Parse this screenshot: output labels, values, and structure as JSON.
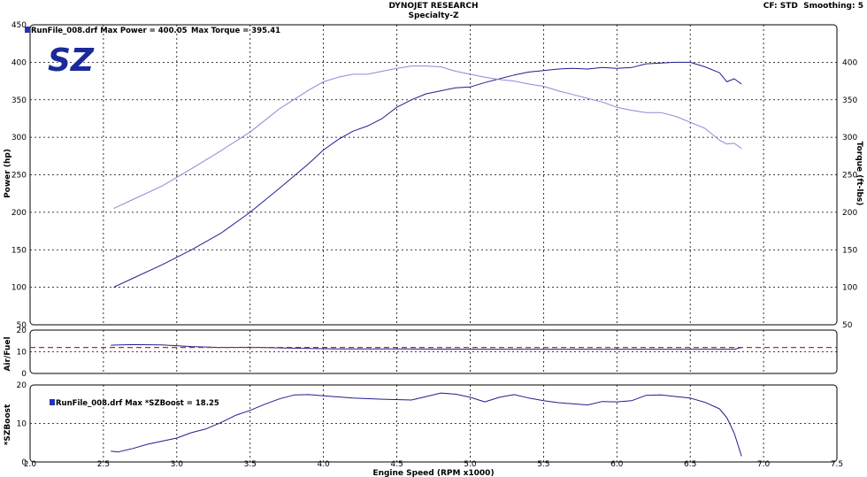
{
  "header": {
    "title": "DYNOJET RESEARCH",
    "subtitle": "Specialty-Z",
    "cf": "CF: STD",
    "smoothing": "Smoothing: 5"
  },
  "logo_text": "SZ",
  "colors": {
    "power": "#1f1f8f",
    "torque": "#8a8ad8",
    "afr": "#1f1f8f",
    "afr_target": "#cc2222",
    "boost": "#1f1f8f",
    "grid": "#000000",
    "frame": "#000000",
    "legend_swatch": "#2233bb"
  },
  "chart_data": [
    {
      "type": "line",
      "panel": "power-torque",
      "legend": [
        "RunFile_008.drf Max Power = 400.05",
        "Max Torque = 395.41"
      ],
      "xlabel": "",
      "ylabel": "Power (hp)",
      "y2label": "Torque (ft-lbs)",
      "xlim": [
        2.0,
        7.5
      ],
      "ylim": [
        50,
        450
      ],
      "y2lim": [
        50,
        450
      ],
      "yticks": [
        50,
        100,
        150,
        200,
        250,
        300,
        350,
        400,
        450
      ],
      "y2ticks": [
        50,
        100,
        150,
        200,
        250,
        300,
        350,
        400
      ],
      "grid": true,
      "series": [
        {
          "name": "Power",
          "x": [
            2.57,
            2.7,
            2.9,
            3.1,
            3.3,
            3.5,
            3.7,
            3.9,
            4.0,
            4.1,
            4.2,
            4.3,
            4.4,
            4.5,
            4.6,
            4.7,
            4.8,
            4.9,
            5.0,
            5.1,
            5.2,
            5.3,
            5.4,
            5.5,
            5.6,
            5.7,
            5.8,
            5.9,
            6.0,
            6.1,
            6.2,
            6.3,
            6.4,
            6.5,
            6.6,
            6.7,
            6.75,
            6.8,
            6.85
          ],
          "values": [
            100,
            112,
            130,
            150,
            172,
            200,
            232,
            265,
            283,
            297,
            308,
            315,
            325,
            340,
            350,
            358,
            362,
            366,
            367,
            373,
            378,
            383,
            387,
            389,
            391,
            392,
            391,
            393,
            392,
            393,
            398,
            399,
            400,
            400,
            394,
            386,
            374,
            378,
            371
          ]
        },
        {
          "name": "Torque",
          "x": [
            2.57,
            2.7,
            2.9,
            3.1,
            3.3,
            3.5,
            3.7,
            3.9,
            4.0,
            4.1,
            4.2,
            4.3,
            4.4,
            4.5,
            4.6,
            4.7,
            4.8,
            4.9,
            5.0,
            5.1,
            5.2,
            5.3,
            5.4,
            5.5,
            5.6,
            5.7,
            5.8,
            5.9,
            6.0,
            6.1,
            6.2,
            6.3,
            6.4,
            6.5,
            6.6,
            6.7,
            6.75,
            6.8,
            6.85
          ],
          "values": [
            205,
            217,
            235,
            258,
            282,
            307,
            338,
            363,
            374,
            380,
            384,
            384,
            388,
            392,
            395,
            395,
            394,
            388,
            384,
            380,
            377,
            375,
            371,
            368,
            362,
            357,
            352,
            347,
            340,
            336,
            333,
            333,
            328,
            320,
            312,
            296,
            291,
            292,
            285
          ]
        }
      ]
    },
    {
      "type": "line",
      "panel": "air-fuel",
      "ylabel": "Air/Fuel",
      "xlim": [
        2.0,
        7.5
      ],
      "ylim": [
        0,
        20
      ],
      "yticks": [
        0,
        10,
        20
      ],
      "grid": true,
      "series": [
        {
          "name": "Air/Fuel",
          "x": [
            2.55,
            2.7,
            2.9,
            3.1,
            3.3,
            3.5,
            3.7,
            3.9,
            4.1,
            4.5,
            5.0,
            5.5,
            6.0,
            6.5,
            6.8,
            6.85
          ],
          "values": [
            13.0,
            13.3,
            13.2,
            12.4,
            12.0,
            12.1,
            11.8,
            11.5,
            11.3,
            11.3,
            11.2,
            11.2,
            11.2,
            11.2,
            11.2,
            12.0
          ]
        },
        {
          "name": "Target",
          "x": [
            2.0,
            7.5
          ],
          "values": [
            12.0,
            12.0
          ]
        }
      ]
    },
    {
      "type": "line",
      "panel": "boost",
      "legend": [
        "RunFile_008.drf Max *SZBoost = 18.25"
      ],
      "xlabel": "Engine Speed (RPM x1000)",
      "ylabel": "*SZBoost",
      "xlim": [
        2.0,
        7.5
      ],
      "xticks": [
        2.0,
        2.5,
        3.0,
        3.5,
        4.0,
        4.5,
        5.0,
        5.5,
        6.0,
        6.5,
        7.0,
        7.5
      ],
      "xticklabels": [
        "2.0",
        "2.5",
        "3.0",
        "3.5",
        "4.0",
        "4.5",
        "5.0",
        "5.5",
        "6.0",
        "6.5",
        "7.0",
        "7.5"
      ],
      "ylim": [
        0,
        20
      ],
      "yticks": [
        0,
        10,
        20
      ],
      "grid": true,
      "series": [
        {
          "name": "*SZBoost",
          "x": [
            2.55,
            2.6,
            2.7,
            2.8,
            2.9,
            3.0,
            3.1,
            3.2,
            3.3,
            3.4,
            3.5,
            3.6,
            3.7,
            3.8,
            3.9,
            4.0,
            4.2,
            4.4,
            4.6,
            4.7,
            4.8,
            4.9,
            5.0,
            5.1,
            5.2,
            5.3,
            5.4,
            5.5,
            5.6,
            5.7,
            5.8,
            5.9,
            6.0,
            6.1,
            6.2,
            6.3,
            6.4,
            6.5,
            6.6,
            6.7,
            6.75,
            6.8,
            6.85
          ],
          "values": [
            2.8,
            2.6,
            3.5,
            4.6,
            5.4,
            6.2,
            7.6,
            8.6,
            10.2,
            12.1,
            13.4,
            15.0,
            16.4,
            17.4,
            17.5,
            17.2,
            16.6,
            16.3,
            16.1,
            17.0,
            17.9,
            17.6,
            16.8,
            15.6,
            16.8,
            17.5,
            16.6,
            15.9,
            15.4,
            15.1,
            14.8,
            15.7,
            15.6,
            15.9,
            17.3,
            17.4,
            17.0,
            16.6,
            15.5,
            13.8,
            11.5,
            7.5,
            1.5
          ]
        }
      ]
    }
  ]
}
